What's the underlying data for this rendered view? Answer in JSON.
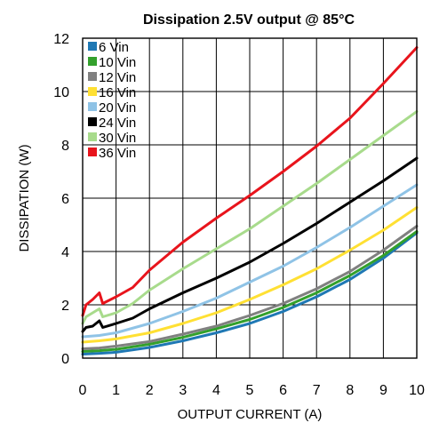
{
  "chart_data": {
    "type": "line",
    "title": "Dissipation 2.5V output @ 85°C",
    "xlabel": "OUTPUT CURRENT (A)",
    "ylabel": "DISSIPATION (W)",
    "xlim": [
      0,
      10
    ],
    "ylim": [
      0,
      12
    ],
    "xticks": [
      0,
      1,
      2,
      3,
      4,
      5,
      6,
      7,
      8,
      9,
      10
    ],
    "yticks": [
      0,
      2,
      4,
      6,
      8,
      10,
      12
    ],
    "grid": true,
    "legend_position": "top-left",
    "series": [
      {
        "name": "6 Vin",
        "color": "#1f78b4",
        "x": [
          0,
          0.5,
          1,
          2,
          3,
          4,
          5,
          6,
          7,
          8,
          9,
          10
        ],
        "y": [
          0.15,
          0.18,
          0.22,
          0.4,
          0.65,
          0.95,
          1.3,
          1.75,
          2.3,
          2.95,
          3.75,
          4.7
        ]
      },
      {
        "name": "10 Vin",
        "color": "#33a02c",
        "x": [
          0,
          0.5,
          1,
          2,
          3,
          4,
          5,
          6,
          7,
          8,
          9,
          10
        ],
        "y": [
          0.25,
          0.28,
          0.33,
          0.52,
          0.78,
          1.1,
          1.45,
          1.9,
          2.45,
          3.1,
          3.85,
          4.75
        ]
      },
      {
        "name": "12 Vin",
        "color": "#808080",
        "x": [
          0,
          0.5,
          1,
          2,
          3,
          4,
          5,
          6,
          7,
          8,
          9,
          10
        ],
        "y": [
          0.35,
          0.38,
          0.45,
          0.62,
          0.9,
          1.2,
          1.6,
          2.05,
          2.6,
          3.25,
          4.05,
          4.95
        ]
      },
      {
        "name": "16 Vin",
        "color": "#ffe033",
        "x": [
          0,
          0.5,
          1,
          2,
          3,
          4,
          5,
          6,
          7,
          8,
          9,
          10
        ],
        "y": [
          0.6,
          0.65,
          0.72,
          0.95,
          1.3,
          1.7,
          2.2,
          2.75,
          3.35,
          4.05,
          4.8,
          5.65
        ]
      },
      {
        "name": "20 Vin",
        "color": "#8fc3e6",
        "x": [
          0,
          0.5,
          1,
          2,
          3,
          4,
          5,
          6,
          7,
          8,
          9,
          10
        ],
        "y": [
          0.8,
          0.85,
          0.95,
          1.3,
          1.75,
          2.25,
          2.85,
          3.45,
          4.15,
          4.9,
          5.7,
          6.5
        ]
      },
      {
        "name": "24 Vin",
        "color": "#000000",
        "x": [
          0,
          0.1,
          0.3,
          0.5,
          0.6,
          1,
          1.5,
          2,
          3,
          4,
          5,
          6,
          7,
          8,
          9,
          10
        ],
        "y": [
          1.0,
          1.15,
          1.2,
          1.4,
          1.15,
          1.3,
          1.5,
          1.85,
          2.45,
          3.0,
          3.6,
          4.3,
          5.05,
          5.85,
          6.65,
          7.5
        ]
      },
      {
        "name": "30 Vin",
        "color": "#a8db8c",
        "x": [
          0,
          0.1,
          0.3,
          0.5,
          0.6,
          1,
          1.5,
          2,
          3,
          4,
          5,
          6,
          7,
          8,
          9,
          10
        ],
        "y": [
          1.3,
          1.55,
          1.7,
          1.85,
          1.55,
          1.7,
          2.05,
          2.55,
          3.35,
          4.1,
          4.85,
          5.7,
          6.55,
          7.45,
          8.35,
          9.25
        ]
      },
      {
        "name": "36 Vin",
        "color": "#e8141c",
        "x": [
          0,
          0.1,
          0.3,
          0.5,
          0.6,
          1,
          1.5,
          2,
          3,
          4,
          5,
          6,
          7,
          8,
          9,
          10
        ],
        "y": [
          1.6,
          2.0,
          2.2,
          2.45,
          2.05,
          2.3,
          2.65,
          3.3,
          4.35,
          5.25,
          6.1,
          7.0,
          7.95,
          9.0,
          10.3,
          11.65
        ]
      }
    ]
  }
}
